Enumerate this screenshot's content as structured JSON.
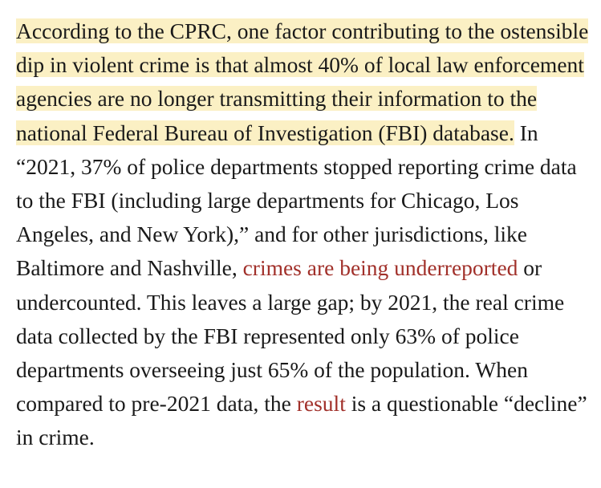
{
  "article": {
    "highlighted": "According to the CPRC, one factor contributing to the ostensible dip in violent crime is that almost 40% of local law enforcement agencies are no longer transmitting their information to the national Federal Bureau of Investigation (FBI) database.",
    "text_1": " In “2021, 37% of police departments stopped reporting crime data to the FBI (including large departments for Chicago, Los Angeles, and New York),” and for other jurisdictions, like Baltimore and Nashville, ",
    "link_1": "crimes are being underreported",
    "text_2": " or undercounted. This leaves a large gap; by 2021, the real crime data collected by the FBI represented only 63% of police departments overseeing just 65% of the population. When compared to pre-2021 data, the ",
    "link_2": "result",
    "text_3": " is a questionable “decline” in crime."
  },
  "colors": {
    "highlight": "#fbf0c4",
    "link": "#a1302a",
    "text": "#1a1a1a"
  }
}
